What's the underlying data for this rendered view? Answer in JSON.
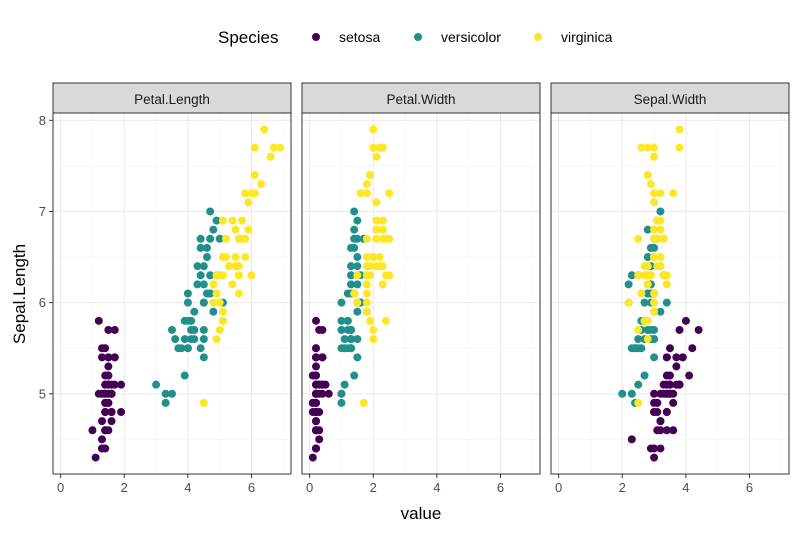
{
  "chart_data": {
    "type": "scatter",
    "xlabel": "value",
    "ylabel": "Sepal.Length",
    "xlim": [
      -0.24,
      7.24
    ],
    "ylim": [
      4.12,
      8.08
    ],
    "x_ticks": [
      0,
      2,
      4,
      6
    ],
    "y_ticks": [
      5,
      6,
      7,
      8
    ],
    "grid": true,
    "legend": {
      "title": "Species",
      "placement": "top"
    },
    "facets": [
      "Petal.Length",
      "Petal.Width",
      "Sepal.Width"
    ],
    "columns": [
      "Sepal.Length",
      "Sepal.Width",
      "Petal.Length",
      "Petal.Width"
    ],
    "series": [
      {
        "name": "setosa",
        "color": "#440154",
        "rows": [
          [
            5.1,
            3.5,
            1.4,
            0.2
          ],
          [
            4.9,
            3.0,
            1.4,
            0.2
          ],
          [
            4.7,
            3.2,
            1.3,
            0.2
          ],
          [
            4.6,
            3.1,
            1.5,
            0.2
          ],
          [
            5.0,
            3.6,
            1.4,
            0.2
          ],
          [
            5.4,
            3.9,
            1.7,
            0.4
          ],
          [
            4.6,
            3.4,
            1.4,
            0.3
          ],
          [
            5.0,
            3.4,
            1.5,
            0.2
          ],
          [
            4.4,
            2.9,
            1.4,
            0.2
          ],
          [
            4.9,
            3.1,
            1.5,
            0.1
          ],
          [
            5.4,
            3.7,
            1.5,
            0.2
          ],
          [
            4.8,
            3.4,
            1.6,
            0.2
          ],
          [
            4.8,
            3.0,
            1.4,
            0.1
          ],
          [
            4.3,
            3.0,
            1.1,
            0.1
          ],
          [
            5.8,
            4.0,
            1.2,
            0.2
          ],
          [
            5.7,
            4.4,
            1.5,
            0.4
          ],
          [
            5.4,
            3.9,
            1.3,
            0.4
          ],
          [
            5.1,
            3.5,
            1.4,
            0.3
          ],
          [
            5.7,
            3.8,
            1.7,
            0.3
          ],
          [
            5.1,
            3.8,
            1.5,
            0.3
          ],
          [
            5.4,
            3.4,
            1.7,
            0.2
          ],
          [
            5.1,
            3.7,
            1.5,
            0.4
          ],
          [
            4.6,
            3.6,
            1.0,
            0.2
          ],
          [
            5.1,
            3.3,
            1.7,
            0.5
          ],
          [
            4.8,
            3.4,
            1.9,
            0.2
          ],
          [
            5.0,
            3.0,
            1.6,
            0.2
          ],
          [
            5.0,
            3.4,
            1.6,
            0.4
          ],
          [
            5.2,
            3.5,
            1.5,
            0.2
          ],
          [
            5.2,
            3.4,
            1.4,
            0.2
          ],
          [
            4.7,
            3.2,
            1.6,
            0.2
          ],
          [
            4.8,
            3.1,
            1.6,
            0.2
          ],
          [
            5.4,
            3.4,
            1.5,
            0.4
          ],
          [
            5.2,
            4.1,
            1.5,
            0.1
          ],
          [
            5.5,
            4.2,
            1.4,
            0.2
          ],
          [
            4.9,
            3.1,
            1.5,
            0.2
          ],
          [
            5.0,
            3.2,
            1.2,
            0.2
          ],
          [
            5.5,
            3.5,
            1.3,
            0.2
          ],
          [
            4.9,
            3.6,
            1.4,
            0.1
          ],
          [
            4.4,
            3.0,
            1.3,
            0.2
          ],
          [
            5.1,
            3.4,
            1.5,
            0.2
          ],
          [
            5.0,
            3.5,
            1.3,
            0.3
          ],
          [
            4.5,
            2.3,
            1.3,
            0.3
          ],
          [
            4.4,
            3.2,
            1.3,
            0.2
          ],
          [
            5.0,
            3.5,
            1.6,
            0.6
          ],
          [
            5.1,
            3.8,
            1.9,
            0.4
          ],
          [
            4.8,
            3.0,
            1.4,
            0.3
          ],
          [
            5.1,
            3.8,
            1.6,
            0.2
          ],
          [
            4.6,
            3.2,
            1.4,
            0.2
          ],
          [
            5.3,
            3.7,
            1.5,
            0.2
          ],
          [
            5.0,
            3.3,
            1.4,
            0.2
          ]
        ]
      },
      {
        "name": "versicolor",
        "color": "#21908C",
        "rows": [
          [
            7.0,
            3.2,
            4.7,
            1.4
          ],
          [
            6.4,
            3.2,
            4.5,
            1.5
          ],
          [
            6.9,
            3.1,
            4.9,
            1.5
          ],
          [
            5.5,
            2.3,
            4.0,
            1.3
          ],
          [
            6.5,
            2.8,
            4.6,
            1.5
          ],
          [
            5.7,
            2.8,
            4.5,
            1.3
          ],
          [
            6.3,
            3.3,
            4.7,
            1.6
          ],
          [
            4.9,
            2.4,
            3.3,
            1.0
          ],
          [
            6.6,
            2.9,
            4.6,
            1.3
          ],
          [
            5.2,
            2.7,
            3.9,
            1.4
          ],
          [
            5.0,
            2.0,
            3.5,
            1.0
          ],
          [
            5.9,
            3.0,
            4.2,
            1.5
          ],
          [
            6.0,
            2.2,
            4.0,
            1.0
          ],
          [
            6.1,
            2.9,
            4.7,
            1.4
          ],
          [
            5.6,
            2.9,
            3.6,
            1.3
          ],
          [
            6.7,
            3.1,
            4.4,
            1.4
          ],
          [
            5.6,
            3.0,
            4.5,
            1.5
          ],
          [
            5.8,
            2.7,
            4.1,
            1.0
          ],
          [
            6.2,
            2.2,
            4.5,
            1.5
          ],
          [
            5.6,
            2.5,
            3.9,
            1.1
          ],
          [
            5.9,
            3.2,
            4.8,
            1.8
          ],
          [
            6.1,
            2.8,
            4.0,
            1.3
          ],
          [
            6.3,
            2.5,
            4.9,
            1.5
          ],
          [
            6.1,
            2.8,
            4.7,
            1.2
          ],
          [
            6.4,
            2.9,
            4.3,
            1.3
          ],
          [
            6.6,
            3.0,
            4.4,
            1.4
          ],
          [
            6.8,
            2.8,
            4.8,
            1.4
          ],
          [
            6.7,
            3.0,
            5.0,
            1.7
          ],
          [
            6.0,
            2.9,
            4.5,
            1.5
          ],
          [
            5.7,
            2.6,
            3.5,
            1.0
          ],
          [
            5.5,
            2.4,
            3.8,
            1.1
          ],
          [
            5.5,
            2.4,
            3.7,
            1.0
          ],
          [
            5.8,
            2.7,
            3.9,
            1.2
          ],
          [
            6.0,
            2.7,
            5.1,
            1.6
          ],
          [
            5.4,
            3.0,
            4.5,
            1.5
          ],
          [
            6.0,
            3.4,
            4.5,
            1.6
          ],
          [
            6.7,
            3.1,
            4.7,
            1.5
          ],
          [
            6.3,
            2.3,
            4.4,
            1.3
          ],
          [
            5.6,
            3.0,
            4.1,
            1.3
          ],
          [
            5.5,
            2.5,
            4.0,
            1.3
          ],
          [
            5.5,
            2.6,
            4.4,
            1.2
          ],
          [
            6.1,
            3.0,
            4.6,
            1.4
          ],
          [
            5.8,
            2.6,
            4.0,
            1.2
          ],
          [
            5.0,
            2.3,
            3.3,
            1.0
          ],
          [
            5.6,
            2.7,
            4.2,
            1.3
          ],
          [
            5.7,
            3.0,
            4.2,
            1.2
          ],
          [
            5.7,
            2.9,
            4.2,
            1.3
          ],
          [
            6.2,
            2.9,
            4.3,
            1.3
          ],
          [
            5.1,
            2.5,
            3.0,
            1.1
          ],
          [
            5.7,
            2.8,
            4.1,
            1.3
          ]
        ]
      },
      {
        "name": "virginica",
        "color": "#FDE725",
        "rows": [
          [
            6.3,
            3.3,
            6.0,
            2.5
          ],
          [
            5.8,
            2.7,
            5.1,
            1.9
          ],
          [
            7.1,
            3.0,
            5.9,
            2.1
          ],
          [
            6.3,
            2.9,
            5.6,
            1.8
          ],
          [
            6.5,
            3.0,
            5.8,
            2.2
          ],
          [
            7.6,
            3.0,
            6.6,
            2.1
          ],
          [
            4.9,
            2.5,
            4.5,
            1.7
          ],
          [
            7.3,
            2.9,
            6.3,
            1.8
          ],
          [
            6.7,
            2.5,
            5.8,
            1.8
          ],
          [
            7.2,
            3.6,
            6.1,
            2.5
          ],
          [
            6.5,
            3.2,
            5.1,
            2.0
          ],
          [
            6.4,
            2.7,
            5.3,
            1.9
          ],
          [
            6.8,
            3.0,
            5.5,
            2.1
          ],
          [
            5.7,
            2.5,
            5.0,
            2.0
          ],
          [
            5.8,
            2.8,
            5.1,
            2.4
          ],
          [
            6.4,
            3.2,
            5.3,
            2.3
          ],
          [
            6.5,
            3.0,
            5.5,
            1.8
          ],
          [
            7.7,
            3.8,
            6.7,
            2.2
          ],
          [
            7.7,
            2.6,
            6.9,
            2.3
          ],
          [
            6.0,
            2.2,
            5.0,
            1.5
          ],
          [
            6.9,
            3.2,
            5.7,
            2.3
          ],
          [
            5.6,
            2.8,
            4.9,
            2.0
          ],
          [
            7.7,
            2.8,
            6.7,
            2.0
          ],
          [
            6.3,
            2.7,
            4.9,
            1.8
          ],
          [
            6.7,
            3.3,
            5.7,
            2.1
          ],
          [
            7.2,
            3.2,
            6.0,
            1.8
          ],
          [
            6.2,
            2.8,
            4.8,
            1.8
          ],
          [
            6.1,
            3.0,
            4.9,
            1.8
          ],
          [
            6.4,
            2.8,
            5.6,
            2.1
          ],
          [
            7.2,
            3.0,
            5.8,
            1.6
          ],
          [
            7.4,
            2.8,
            6.1,
            1.9
          ],
          [
            7.9,
            3.8,
            6.4,
            2.0
          ],
          [
            6.4,
            2.8,
            5.6,
            2.2
          ],
          [
            6.3,
            2.8,
            5.1,
            1.5
          ],
          [
            6.1,
            2.6,
            5.6,
            1.4
          ],
          [
            7.7,
            3.0,
            6.1,
            2.3
          ],
          [
            6.3,
            3.4,
            5.6,
            2.4
          ],
          [
            6.4,
            3.1,
            5.5,
            1.8
          ],
          [
            6.0,
            3.0,
            4.8,
            1.8
          ],
          [
            6.9,
            3.1,
            5.4,
            2.1
          ],
          [
            6.7,
            3.1,
            5.6,
            2.4
          ],
          [
            6.9,
            3.1,
            5.1,
            2.3
          ],
          [
            5.8,
            2.7,
            5.1,
            1.9
          ],
          [
            6.8,
            3.2,
            5.9,
            2.3
          ],
          [
            6.7,
            3.3,
            5.7,
            2.5
          ],
          [
            6.7,
            3.0,
            5.2,
            2.3
          ],
          [
            6.3,
            2.5,
            5.0,
            1.9
          ],
          [
            6.5,
            3.0,
            5.2,
            2.0
          ],
          [
            6.2,
            3.4,
            5.4,
            2.3
          ],
          [
            5.9,
            3.0,
            5.1,
            1.8
          ]
        ]
      }
    ]
  }
}
